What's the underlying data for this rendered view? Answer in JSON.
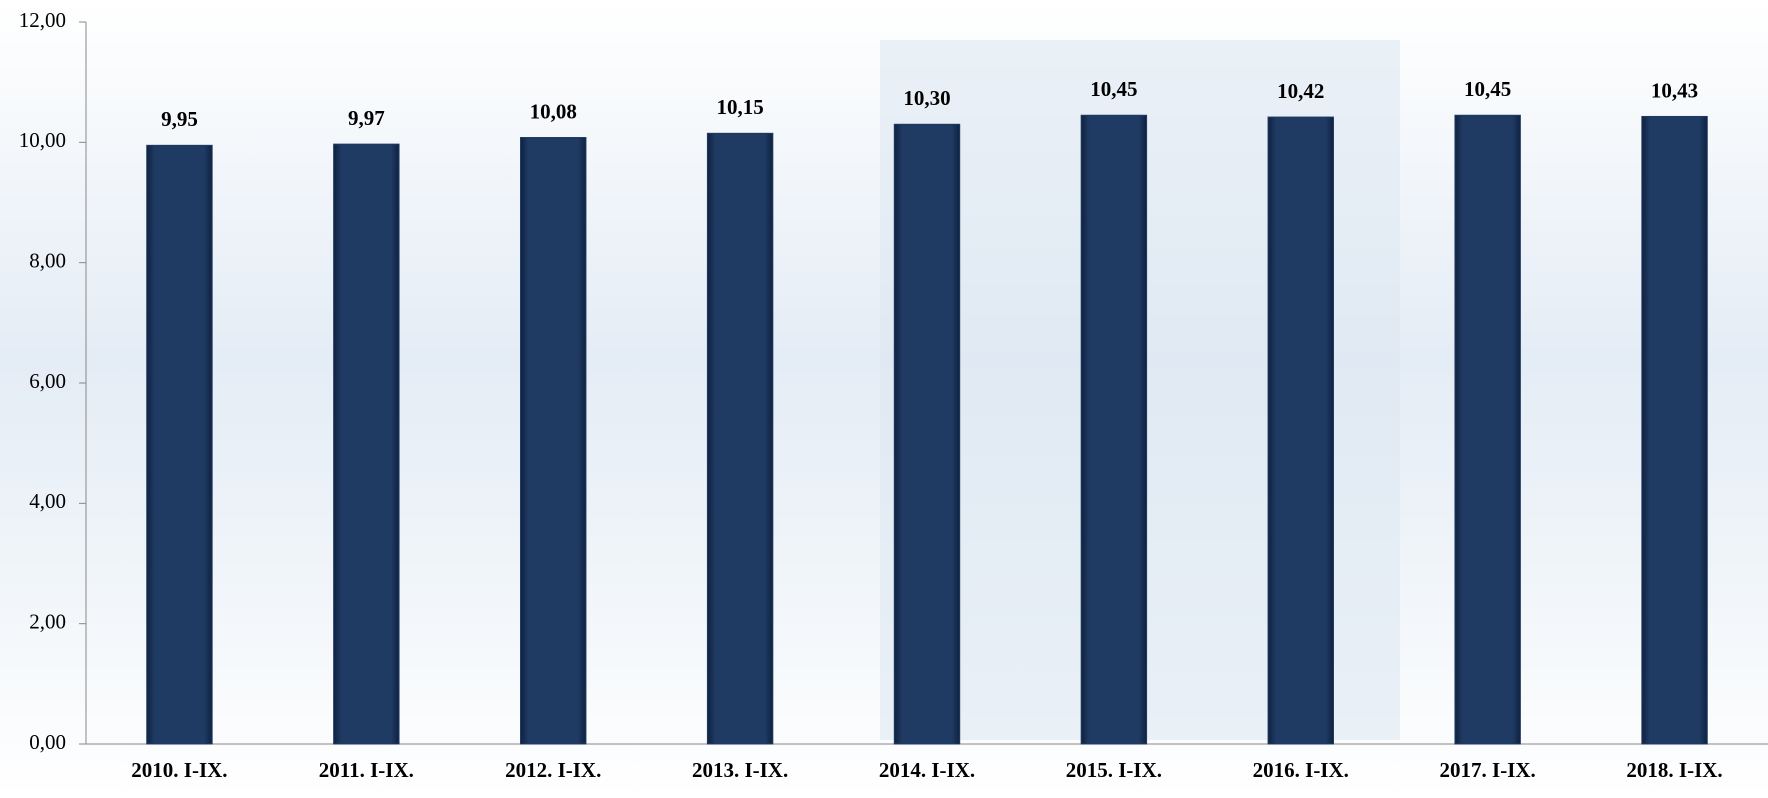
{
  "chart_data": {
    "type": "bar",
    "categories": [
      "2010. I-IX.",
      "2011. I-IX.",
      "2012. I-IX.",
      "2013. I-IX.",
      "2014. I-IX.",
      "2015. I-IX.",
      "2016. I-IX.",
      "2017. I-IX.",
      "2018. I-IX."
    ],
    "values": [
      9.95,
      9.97,
      10.08,
      10.15,
      10.3,
      10.45,
      10.42,
      10.45,
      10.43
    ],
    "value_labels": [
      "9,95",
      "9,97",
      "10,08",
      "10,15",
      "10,30",
      "10,45",
      "10,42",
      "10,45",
      "10,43"
    ],
    "color": "#1f3a63",
    "ylim": [
      0,
      12
    ],
    "yticks": [
      {
        "value": 0,
        "label": "0,00"
      },
      {
        "value": 2,
        "label": "2,00"
      },
      {
        "value": 4,
        "label": "4,00"
      },
      {
        "value": 6,
        "label": "6,00"
      },
      {
        "value": 8,
        "label": "8,00"
      },
      {
        "value": 10,
        "label": "10,00"
      },
      {
        "value": 12,
        "label": "12,00"
      }
    ],
    "grid": false
  }
}
